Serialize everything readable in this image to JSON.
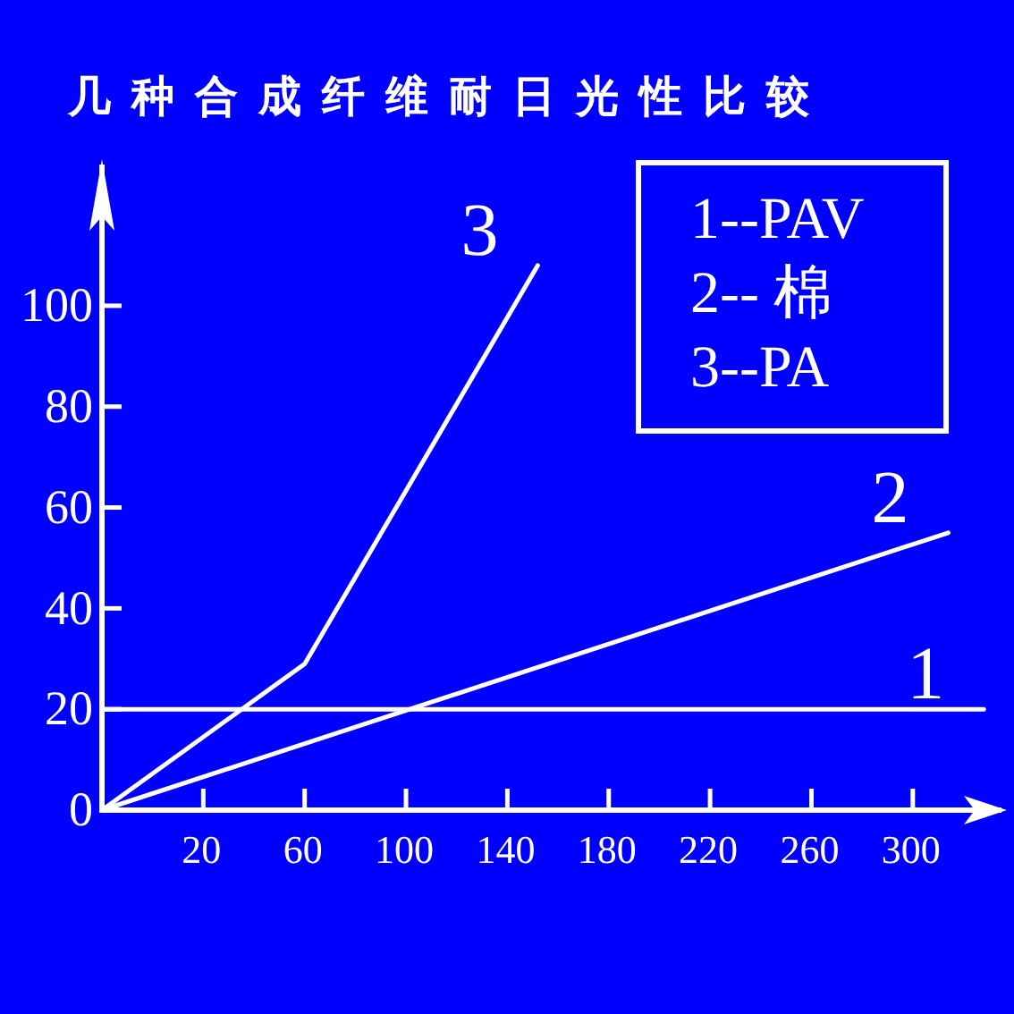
{
  "chart_data": {
    "type": "line",
    "title": "几种合成纤维耐日光性比较",
    "xlim": [
      -20,
      335
    ],
    "xticks": [
      20,
      60,
      100,
      140,
      180,
      220,
      260,
      300
    ],
    "ylim": [
      0,
      128
    ],
    "yticks": [
      0,
      20,
      40,
      60,
      80,
      100
    ],
    "series": [
      {
        "name": "1",
        "color": "#ffffff",
        "x": [
          -20,
          328
        ],
        "values": [
          20,
          20
        ]
      },
      {
        "name": "2",
        "color": "#ffffff",
        "x": [
          -20,
          314
        ],
        "values": [
          0,
          55
        ]
      },
      {
        "name": "3",
        "color": "#ffffff",
        "x": [
          -20,
          60,
          152
        ],
        "values": [
          0,
          29,
          108
        ]
      }
    ],
    "annotations": [
      "1--PAV",
      "2-- 棉",
      "3--PA"
    ]
  }
}
